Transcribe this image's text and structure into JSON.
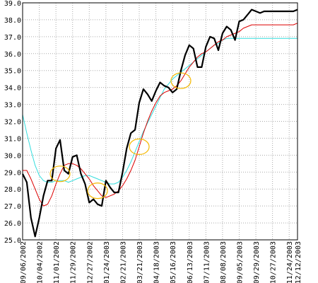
{
  "chart_data": {
    "type": "line",
    "title": "",
    "xlabel": "",
    "ylabel": "",
    "ylim": [
      25.0,
      39.0
    ],
    "y_ticks": [
      25.0,
      26.0,
      27.0,
      28.0,
      29.0,
      30.0,
      31.0,
      32.0,
      33.0,
      34.0,
      35.0,
      36.0,
      37.0,
      38.0,
      39.0
    ],
    "y_tick_labels": [
      "25.0",
      "26.0",
      "27.0",
      "28.0",
      "29.0",
      "30.0",
      "31.0",
      "32.0",
      "33.0",
      "34.0",
      "35.0",
      "36.0",
      "37.0",
      "38.0",
      "39.0"
    ],
    "x_tick_labels": [
      "09/06/2002",
      "10/04/2002",
      "11/01/2002",
      "11/29/2002",
      "12/27/2002",
      "01/24/2003",
      "02/21/2003",
      "03/21/2003",
      "04/18/2003",
      "05/16/2003",
      "06/13/2003",
      "07/11/2003",
      "08/08/2003",
      "09/05/2003",
      "09/29/2003",
      "10/27/2003",
      "11/24/2003",
      "12/12/2003"
    ],
    "x_tick_index": [
      0,
      4,
      8,
      12,
      16,
      20,
      24,
      28,
      32,
      36,
      40,
      44,
      48,
      52,
      56,
      60,
      64,
      66
    ],
    "grid": true,
    "colors": {
      "price": "#000000",
      "short_ma": "#dd0000",
      "long_ma": "#33dddd",
      "highlight": "#f5b800",
      "grid": "#aaaaaa",
      "frame": "#000000"
    },
    "series": [
      {
        "key": "price",
        "values": [
          28.9,
          28.4,
          26.3,
          25.2,
          26.3,
          27.6,
          28.5,
          28.5,
          30.4,
          30.9,
          29.1,
          28.9,
          29.9,
          30.0,
          28.9,
          28.3,
          27.2,
          27.4,
          27.1,
          27.0,
          28.5,
          28.1,
          27.8,
          27.8,
          29.0,
          30.4,
          31.3,
          31.5,
          33.1,
          33.9,
          33.6,
          33.2,
          33.8,
          34.3,
          34.1,
          34.0,
          33.7,
          33.9,
          35.0,
          35.9,
          36.5,
          36.3,
          35.2,
          35.2,
          36.4,
          37.0,
          36.9,
          36.2,
          37.2,
          37.6,
          37.4,
          36.8,
          37.9,
          38.0,
          38.3,
          38.6,
          38.5,
          38.4,
          38.5,
          38.5,
          38.5,
          38.5,
          38.5,
          38.5,
          38.5,
          38.5,
          38.6
        ]
      },
      {
        "key": "short_ma",
        "values": [
          29.1,
          29.1,
          28.6,
          28.0,
          27.4,
          27.0,
          27.1,
          27.6,
          28.3,
          28.9,
          29.4,
          29.5,
          29.5,
          29.4,
          29.2,
          28.9,
          28.6,
          28.2,
          27.9,
          27.6,
          27.5,
          27.6,
          27.7,
          27.9,
          28.2,
          28.6,
          29.1,
          29.7,
          30.5,
          31.3,
          32.0,
          32.6,
          33.1,
          33.5,
          33.7,
          33.8,
          33.9,
          34.1,
          34.4,
          34.8,
          35.2,
          35.5,
          35.8,
          36.0,
          36.1,
          36.3,
          36.5,
          36.7,
          36.8,
          37.0,
          37.1,
          37.2,
          37.3,
          37.5,
          37.6,
          37.7,
          37.7,
          37.7,
          37.7,
          37.7,
          37.7,
          37.7,
          37.7,
          37.7,
          37.7,
          37.7,
          37.8
        ]
      },
      {
        "key": "long_ma",
        "values": [
          32.4,
          31.3,
          30.3,
          29.4,
          28.8,
          28.5,
          28.4,
          28.4,
          28.5,
          28.5,
          28.5,
          28.4,
          28.5,
          28.6,
          28.7,
          28.8,
          28.8,
          28.7,
          28.6,
          28.5,
          28.4,
          28.3,
          28.3,
          28.4,
          28.7,
          29.1,
          29.6,
          30.2,
          30.8,
          31.4,
          31.9,
          32.4,
          32.9,
          33.4,
          33.9,
          34.2,
          34.5,
          34.7,
          34.9,
          35.1,
          35.3,
          35.5,
          35.7,
          35.9,
          36.1,
          36.3,
          36.5,
          36.6,
          36.8,
          36.9,
          36.9,
          36.9,
          36.9,
          36.9,
          36.9,
          36.9,
          36.9,
          36.9,
          36.9,
          36.9,
          36.9,
          36.9,
          36.9,
          36.9,
          36.9,
          36.9,
          36.9
        ]
      }
    ],
    "highlight_ellipses_at": [
      9,
      18,
      28,
      38
    ]
  }
}
